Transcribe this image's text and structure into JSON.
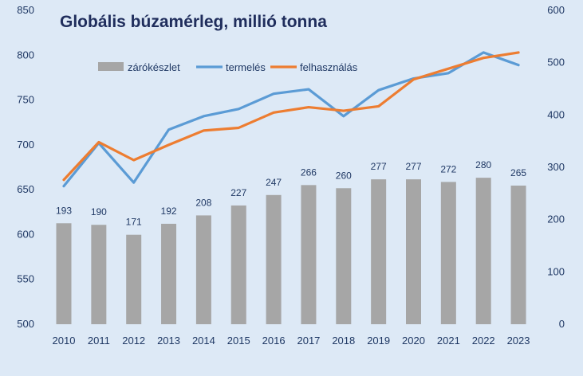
{
  "chart_data": {
    "type": "bar+line",
    "title": "Globális búzamérleg, millió tonna",
    "categories": [
      "2010",
      "2011",
      "2012",
      "2013",
      "2014",
      "2015",
      "2016",
      "2017",
      "2018",
      "2019",
      "2020",
      "2021",
      "2022",
      "2023"
    ],
    "series": [
      {
        "name": "zárókészlet",
        "kind": "bar",
        "axis": "right",
        "color": "#a6a6a6",
        "values": [
          193,
          190,
          171,
          192,
          208,
          227,
          247,
          266,
          260,
          277,
          277,
          272,
          280,
          265
        ]
      },
      {
        "name": "termelés",
        "kind": "line",
        "axis": "left",
        "color": "#5b9bd5",
        "values": [
          654,
          702,
          658,
          717,
          732,
          740,
          757,
          762,
          732,
          761,
          774,
          780,
          803,
          789
        ]
      },
      {
        "name": "felhasználás",
        "kind": "line",
        "axis": "left",
        "color": "#ed7d31",
        "values": [
          661,
          703,
          683,
          700,
          716,
          719,
          736,
          742,
          738,
          743,
          773,
          785,
          797,
          803
        ]
      }
    ],
    "y_left": {
      "min": 500,
      "max": 850,
      "ticks": [
        500,
        550,
        600,
        650,
        700,
        750,
        800,
        850
      ]
    },
    "y_right": {
      "min": 0,
      "max": 600,
      "ticks": [
        0,
        100,
        200,
        300,
        400,
        500,
        600
      ]
    },
    "grid": false,
    "legend_position": "top-left, inside plot"
  },
  "colors": {
    "background": "#dde9f6",
    "text": "#1f3864"
  }
}
